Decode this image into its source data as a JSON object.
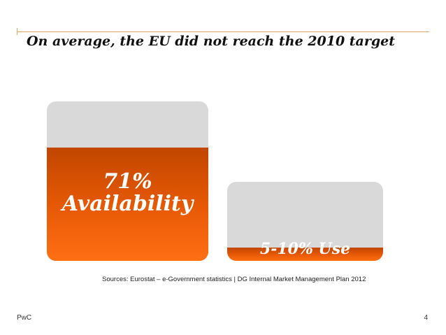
{
  "slide": {
    "title": "On average, the EU did not reach the 2010 target",
    "source": "Sources: Eurostat – e-Government statistics | DG Internal Market Management Plan 2012",
    "footer_brand": "PwC",
    "page_number": "4"
  },
  "chart_data": {
    "type": "bar",
    "title": "On average, the EU did not reach the 2010 target",
    "categories": [
      "Availability",
      "Use"
    ],
    "values": [
      71,
      7.5
    ],
    "value_labels": [
      "71%",
      "5-10%"
    ],
    "label_lines": [
      [
        "71%",
        "Availability"
      ],
      [
        "5-10% Use"
      ]
    ],
    "ylim": [
      0,
      100
    ],
    "colors": {
      "fill": "#e85a05",
      "track": "#d9d9d9"
    }
  }
}
